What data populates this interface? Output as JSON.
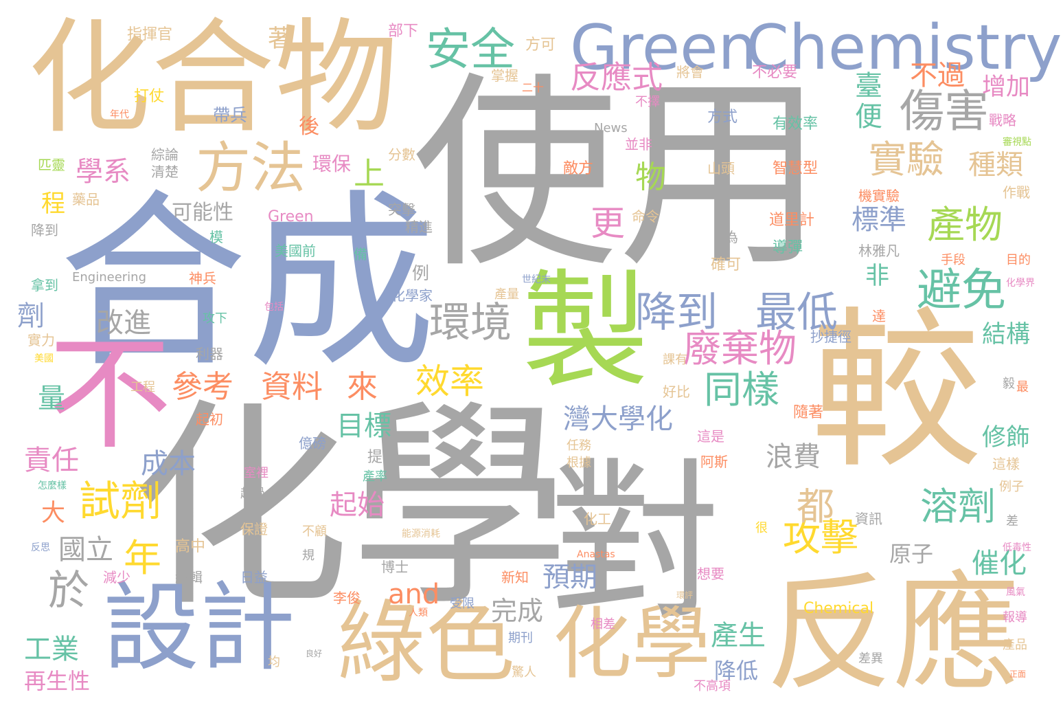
{
  "palette": {
    "gray": "#a6a6a6",
    "tan": "#e5c494",
    "blue": "#8da0cb",
    "green": "#a6d854",
    "pink": "#e78ac3",
    "teal": "#66c2a5",
    "orange": "#fc8d62",
    "yellow": "#ffd92f"
  },
  "words": [
    {
      "text": "使用",
      "color": "gray"
    },
    {
      "text": "化學",
      "color": "gray"
    },
    {
      "text": "合成",
      "color": "blue"
    },
    {
      "text": "較",
      "color": "tan"
    },
    {
      "text": "對",
      "color": "gray"
    },
    {
      "text": "化合物",
      "color": "tan"
    },
    {
      "text": "不",
      "color": "pink"
    },
    {
      "text": "製",
      "color": "green"
    },
    {
      "text": "反應",
      "color": "tan"
    },
    {
      "text": "Green",
      "color": "blue"
    },
    {
      "text": "Chemistry",
      "color": "blue"
    },
    {
      "text": "設計",
      "color": "blue"
    },
    {
      "text": "綠色",
      "color": "tan"
    },
    {
      "text": "化學",
      "color": "tan"
    },
    {
      "text": "方法",
      "color": "tan"
    },
    {
      "text": "安全",
      "color": "teal"
    },
    {
      "text": "傷害",
      "color": "gray"
    },
    {
      "text": "避免",
      "color": "teal"
    },
    {
      "text": "降到",
      "color": "blue"
    },
    {
      "text": "最低",
      "color": "blue"
    },
    {
      "text": "環境",
      "color": "gray"
    },
    {
      "text": "廢棄物",
      "color": "pink"
    },
    {
      "text": "實驗",
      "color": "tan"
    },
    {
      "text": "產物",
      "color": "green"
    },
    {
      "text": "溶劑",
      "color": "teal"
    },
    {
      "text": "試劑",
      "color": "yellow"
    },
    {
      "text": "效率",
      "color": "yellow"
    },
    {
      "text": "參考",
      "color": "orange"
    },
    {
      "text": "資料",
      "color": "orange"
    },
    {
      "text": "來",
      "color": "orange"
    },
    {
      "text": "同樣",
      "color": "teal"
    },
    {
      "text": "攻擊",
      "color": "yellow"
    },
    {
      "text": "反應式",
      "color": "pink"
    },
    {
      "text": "不過",
      "color": "orange"
    },
    {
      "text": "改進",
      "color": "gray"
    },
    {
      "text": "上",
      "color": "green"
    },
    {
      "text": "更",
      "color": "pink"
    },
    {
      "text": "物",
      "color": "green"
    },
    {
      "text": "學系",
      "color": "pink"
    },
    {
      "text": "年",
      "color": "yellow"
    },
    {
      "text": "於",
      "color": "gray"
    },
    {
      "text": "都",
      "color": "tan"
    },
    {
      "text": "種類",
      "color": "tan"
    },
    {
      "text": "標準",
      "color": "blue"
    },
    {
      "text": "臺",
      "color": "teal"
    },
    {
      "text": "便",
      "color": "teal"
    },
    {
      "text": "增加",
      "color": "pink"
    },
    {
      "text": "結構",
      "color": "teal"
    },
    {
      "text": "修飾",
      "color": "teal"
    },
    {
      "text": "催化",
      "color": "teal"
    },
    {
      "text": "起始",
      "color": "pink"
    },
    {
      "text": "目標",
      "color": "teal"
    },
    {
      "text": "灣大學化",
      "color": "blue"
    },
    {
      "text": "浪費",
      "color": "gray"
    },
    {
      "text": "國立",
      "color": "gray"
    },
    {
      "text": "責任",
      "color": "pink"
    },
    {
      "text": "成本",
      "color": "blue"
    },
    {
      "text": "預期",
      "color": "blue"
    },
    {
      "text": "產生",
      "color": "teal"
    },
    {
      "text": "降低",
      "color": "blue"
    },
    {
      "text": "完成",
      "color": "gray"
    },
    {
      "text": "and",
      "color": "orange"
    },
    {
      "text": "工業",
      "color": "teal"
    },
    {
      "text": "再生性",
      "color": "pink"
    },
    {
      "text": "可能性",
      "color": "gray"
    },
    {
      "text": "環保",
      "color": "pink"
    },
    {
      "text": "非",
      "color": "teal"
    },
    {
      "text": "原子",
      "color": "gray"
    },
    {
      "text": "Chemical",
      "color": "yellow"
    },
    {
      "text": "指揮官",
      "color": "tan"
    },
    {
      "text": "著",
      "color": "tan"
    },
    {
      "text": "部下",
      "color": "pink"
    },
    {
      "text": "方可",
      "color": "tan"
    },
    {
      "text": "掌握",
      "color": "tan"
    },
    {
      "text": "將會",
      "color": "tan"
    },
    {
      "text": "不必要",
      "color": "pink"
    },
    {
      "text": "不擇",
      "color": "pink"
    },
    {
      "text": "戰略",
      "color": "pink"
    },
    {
      "text": "打仗",
      "color": "yellow"
    },
    {
      "text": "帶兵",
      "color": "blue"
    },
    {
      "text": "News",
      "color": "gray"
    },
    {
      "text": "方式",
      "color": "blue"
    },
    {
      "text": "有效率",
      "color": "teal"
    },
    {
      "text": "後",
      "color": "orange"
    },
    {
      "text": "並非",
      "color": "pink"
    },
    {
      "text": "敵方",
      "color": "orange"
    },
    {
      "text": "山頭",
      "color": "tan"
    },
    {
      "text": "智慧型",
      "color": "orange"
    },
    {
      "text": "匹靈",
      "color": "green"
    },
    {
      "text": "藥品",
      "color": "tan"
    },
    {
      "text": "綜論",
      "color": "gray"
    },
    {
      "text": "清楚",
      "color": "gray"
    },
    {
      "text": "分數",
      "color": "tan"
    },
    {
      "text": "程",
      "color": "yellow"
    },
    {
      "text": "作戰",
      "color": "tan"
    },
    {
      "text": "機實驗",
      "color": "orange"
    },
    {
      "text": "降到",
      "color": "gray"
    },
    {
      "text": "突擊",
      "color": "gray"
    },
    {
      "text": "精進",
      "color": "gray"
    },
    {
      "text": "命令",
      "color": "tan"
    },
    {
      "text": "道里計",
      "color": "orange"
    },
    {
      "text": "導彈",
      "color": "teal"
    },
    {
      "text": "林雅凡",
      "color": "gray"
    },
    {
      "text": "為",
      "color": "gray"
    },
    {
      "text": "手段",
      "color": "orange"
    },
    {
      "text": "目的",
      "color": "orange"
    },
    {
      "text": "Green",
      "color": "pink"
    },
    {
      "text": "模",
      "color": "teal"
    },
    {
      "text": "美國前",
      "color": "teal"
    },
    {
      "text": "備",
      "color": "teal"
    },
    {
      "text": "確可",
      "color": "tan"
    },
    {
      "text": "Engineering",
      "color": "gray"
    },
    {
      "text": "神兵",
      "color": "orange"
    },
    {
      "text": "拿到",
      "color": "teal"
    },
    {
      "text": "例",
      "color": "gray"
    },
    {
      "text": "化學家",
      "color": "blue"
    },
    {
      "text": "世紀末",
      "color": "blue"
    },
    {
      "text": "劑",
      "color": "blue"
    },
    {
      "text": "攻下",
      "color": "teal"
    },
    {
      "text": "產量",
      "color": "tan"
    },
    {
      "text": "實力",
      "color": "tan"
    },
    {
      "text": "利器",
      "color": "gray"
    },
    {
      "text": "課有",
      "color": "tan"
    },
    {
      "text": "達",
      "color": "orange"
    },
    {
      "text": "抄捷徑",
      "color": "blue"
    },
    {
      "text": "量",
      "color": "teal"
    },
    {
      "text": "工程",
      "color": "tan"
    },
    {
      "text": "好比",
      "color": "tan"
    },
    {
      "text": "起初",
      "color": "orange"
    },
    {
      "text": "隨著",
      "color": "orange"
    },
    {
      "text": "毅",
      "color": "gray"
    },
    {
      "text": "億磅",
      "color": "blue"
    },
    {
      "text": "任務",
      "color": "tan"
    },
    {
      "text": "這是",
      "color": "pink"
    },
    {
      "text": "提到",
      "color": "gray"
    },
    {
      "text": "根據",
      "color": "tan"
    },
    {
      "text": "阿斯",
      "color": "orange"
    },
    {
      "text": "這樣",
      "color": "tan"
    },
    {
      "text": "大",
      "color": "orange"
    },
    {
      "text": "室裡",
      "color": "pink"
    },
    {
      "text": "產率",
      "color": "teal"
    },
    {
      "text": "超過",
      "color": "gray"
    },
    {
      "text": "例子",
      "color": "tan"
    },
    {
      "text": "保證",
      "color": "tan"
    },
    {
      "text": "化工",
      "color": "tan"
    },
    {
      "text": "資訊",
      "color": "gray"
    },
    {
      "text": "不顧",
      "color": "tan"
    },
    {
      "text": "很",
      "color": "yellow"
    },
    {
      "text": "差",
      "color": "gray"
    },
    {
      "text": "高中",
      "color": "tan"
    },
    {
      "text": "規",
      "color": "gray"
    },
    {
      "text": "博士",
      "color": "gray"
    },
    {
      "text": "編輯",
      "color": "gray"
    },
    {
      "text": "日益",
      "color": "blue"
    },
    {
      "text": "減少",
      "color": "pink"
    },
    {
      "text": "新知",
      "color": "orange"
    },
    {
      "text": "想要",
      "color": "pink"
    },
    {
      "text": "李俊",
      "color": "orange"
    },
    {
      "text": "受限",
      "color": "blue"
    },
    {
      "text": "期刊",
      "color": "blue"
    },
    {
      "text": "相差",
      "color": "pink"
    },
    {
      "text": "報導",
      "color": "pink"
    },
    {
      "text": "產品",
      "color": "tan"
    },
    {
      "text": "差異",
      "color": "gray"
    },
    {
      "text": "驚人",
      "color": "tan"
    },
    {
      "text": "均",
      "color": "tan"
    },
    {
      "text": "不高項",
      "color": "pink"
    },
    {
      "text": "最",
      "color": "orange"
    },
    {
      "text": "二十",
      "color": "orange"
    },
    {
      "text": "年代",
      "color": "orange"
    },
    {
      "text": "美國",
      "color": "yellow"
    },
    {
      "text": "包括",
      "color": "pink"
    },
    {
      "text": "怎麼樣",
      "color": "teal"
    },
    {
      "text": "反思",
      "color": "blue"
    },
    {
      "text": "Anastas",
      "color": "orange"
    },
    {
      "text": "環評",
      "color": "tan"
    },
    {
      "text": "人類",
      "color": "orange"
    },
    {
      "text": "良好",
      "color": "gray"
    },
    {
      "text": "能源消耗",
      "color": "tan"
    },
    {
      "text": "化學界",
      "color": "pink"
    },
    {
      "text": "風氣",
      "color": "pink"
    },
    {
      "text": "低毒性",
      "color": "pink"
    },
    {
      "text": "正面",
      "color": "orange"
    },
    {
      "text": "審視點",
      "color": "green"
    }
  ]
}
